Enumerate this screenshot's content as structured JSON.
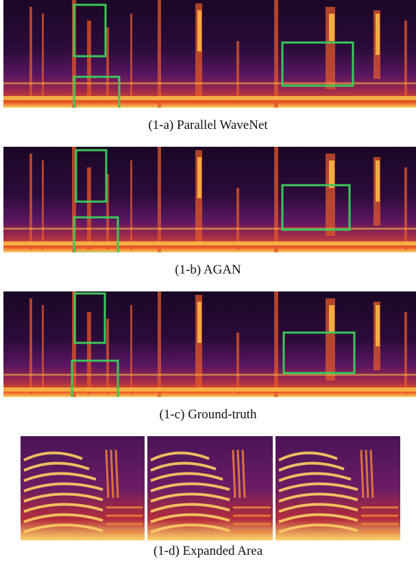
{
  "panels": [
    {
      "caption": "(1-a) Parallel WaveNet"
    },
    {
      "caption": "(1-b) AGAN"
    },
    {
      "caption": "(1-c) Ground-truth"
    }
  ],
  "expanded": {
    "caption": "(1-d) Expanded Area"
  },
  "colors": {
    "background": "#1a0724",
    "mid": "#6e1f6d",
    "hot": "#e04a1c",
    "bright": "#ffd060",
    "highlight_box": "#3cc85a"
  },
  "icons": []
}
